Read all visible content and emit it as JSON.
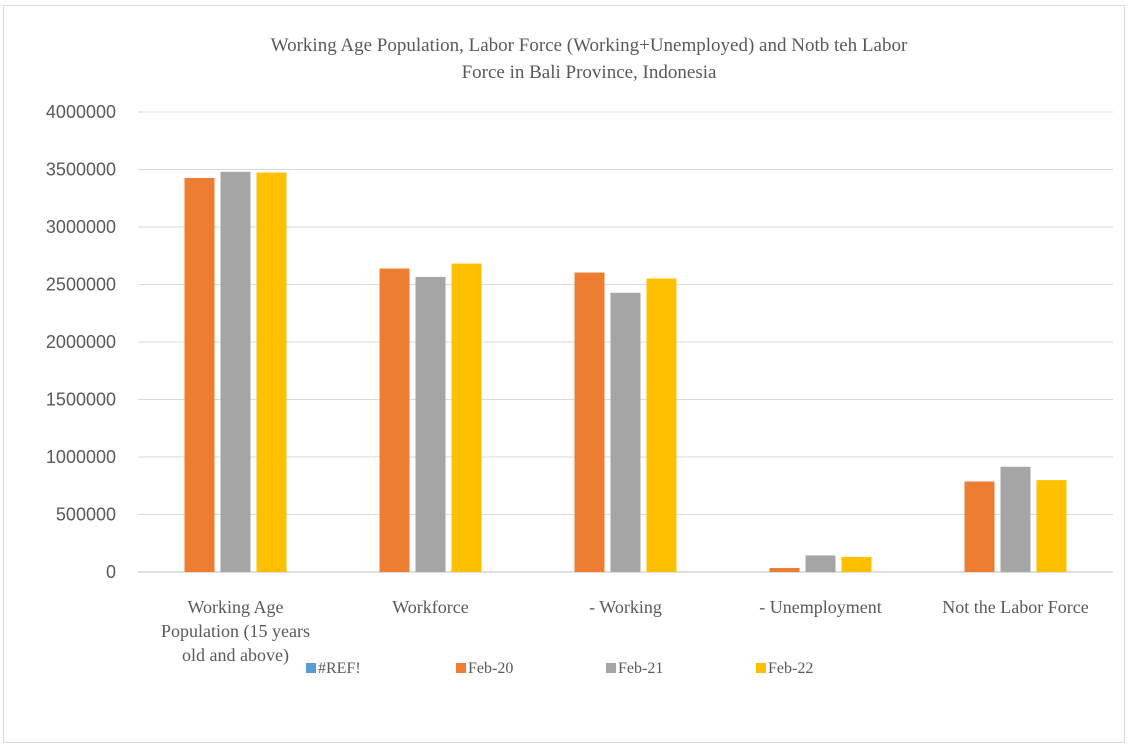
{
  "chart_data": {
    "type": "bar",
    "title": "Working Age Population, Labor Force (Working+Unemployed) and Notb teh Labor Force in Bali Province, Indonesia",
    "title_lines": [
      "Working Age Population, Labor Force (Working+Unemployed) and Notb teh Labor",
      "Force in Bali Province, Indonesia"
    ],
    "categories": [
      "Working Age Population (15 years old and above)",
      "Workforce",
      "- Working",
      "- Unemployment",
      "Not the Labor Force"
    ],
    "category_lines": [
      [
        "Working Age",
        "Population (15 years",
        "old and above)"
      ],
      [
        "Workforce"
      ],
      [
        "- Working"
      ],
      [
        "- Unemployment"
      ],
      [
        "Not the Labor Force"
      ]
    ],
    "series": [
      {
        "name": "#REF!",
        "color": "#5b9bd5",
        "values": [
          0,
          0,
          0,
          0,
          0
        ]
      },
      {
        "name": "Feb-20",
        "color": "#ed7d31",
        "values": [
          3426000,
          2639000,
          2604000,
          35000,
          787000
        ]
      },
      {
        "name": "Feb-21",
        "color": "#a5a5a5",
        "values": [
          3480000,
          2566000,
          2428000,
          144000,
          915000
        ]
      },
      {
        "name": "Feb-22",
        "color": "#ffc000",
        "values": [
          3474000,
          2682000,
          2552000,
          131000,
          799000
        ]
      }
    ],
    "y_ticks": [
      "0",
      "500000",
      "1000000",
      "1500000",
      "2000000",
      "2500000",
      "3000000",
      "3500000",
      "4000000"
    ],
    "ylim": [
      0,
      4000000
    ],
    "xlabel": "",
    "ylabel": "",
    "grid": true,
    "legend_position": "bottom"
  }
}
